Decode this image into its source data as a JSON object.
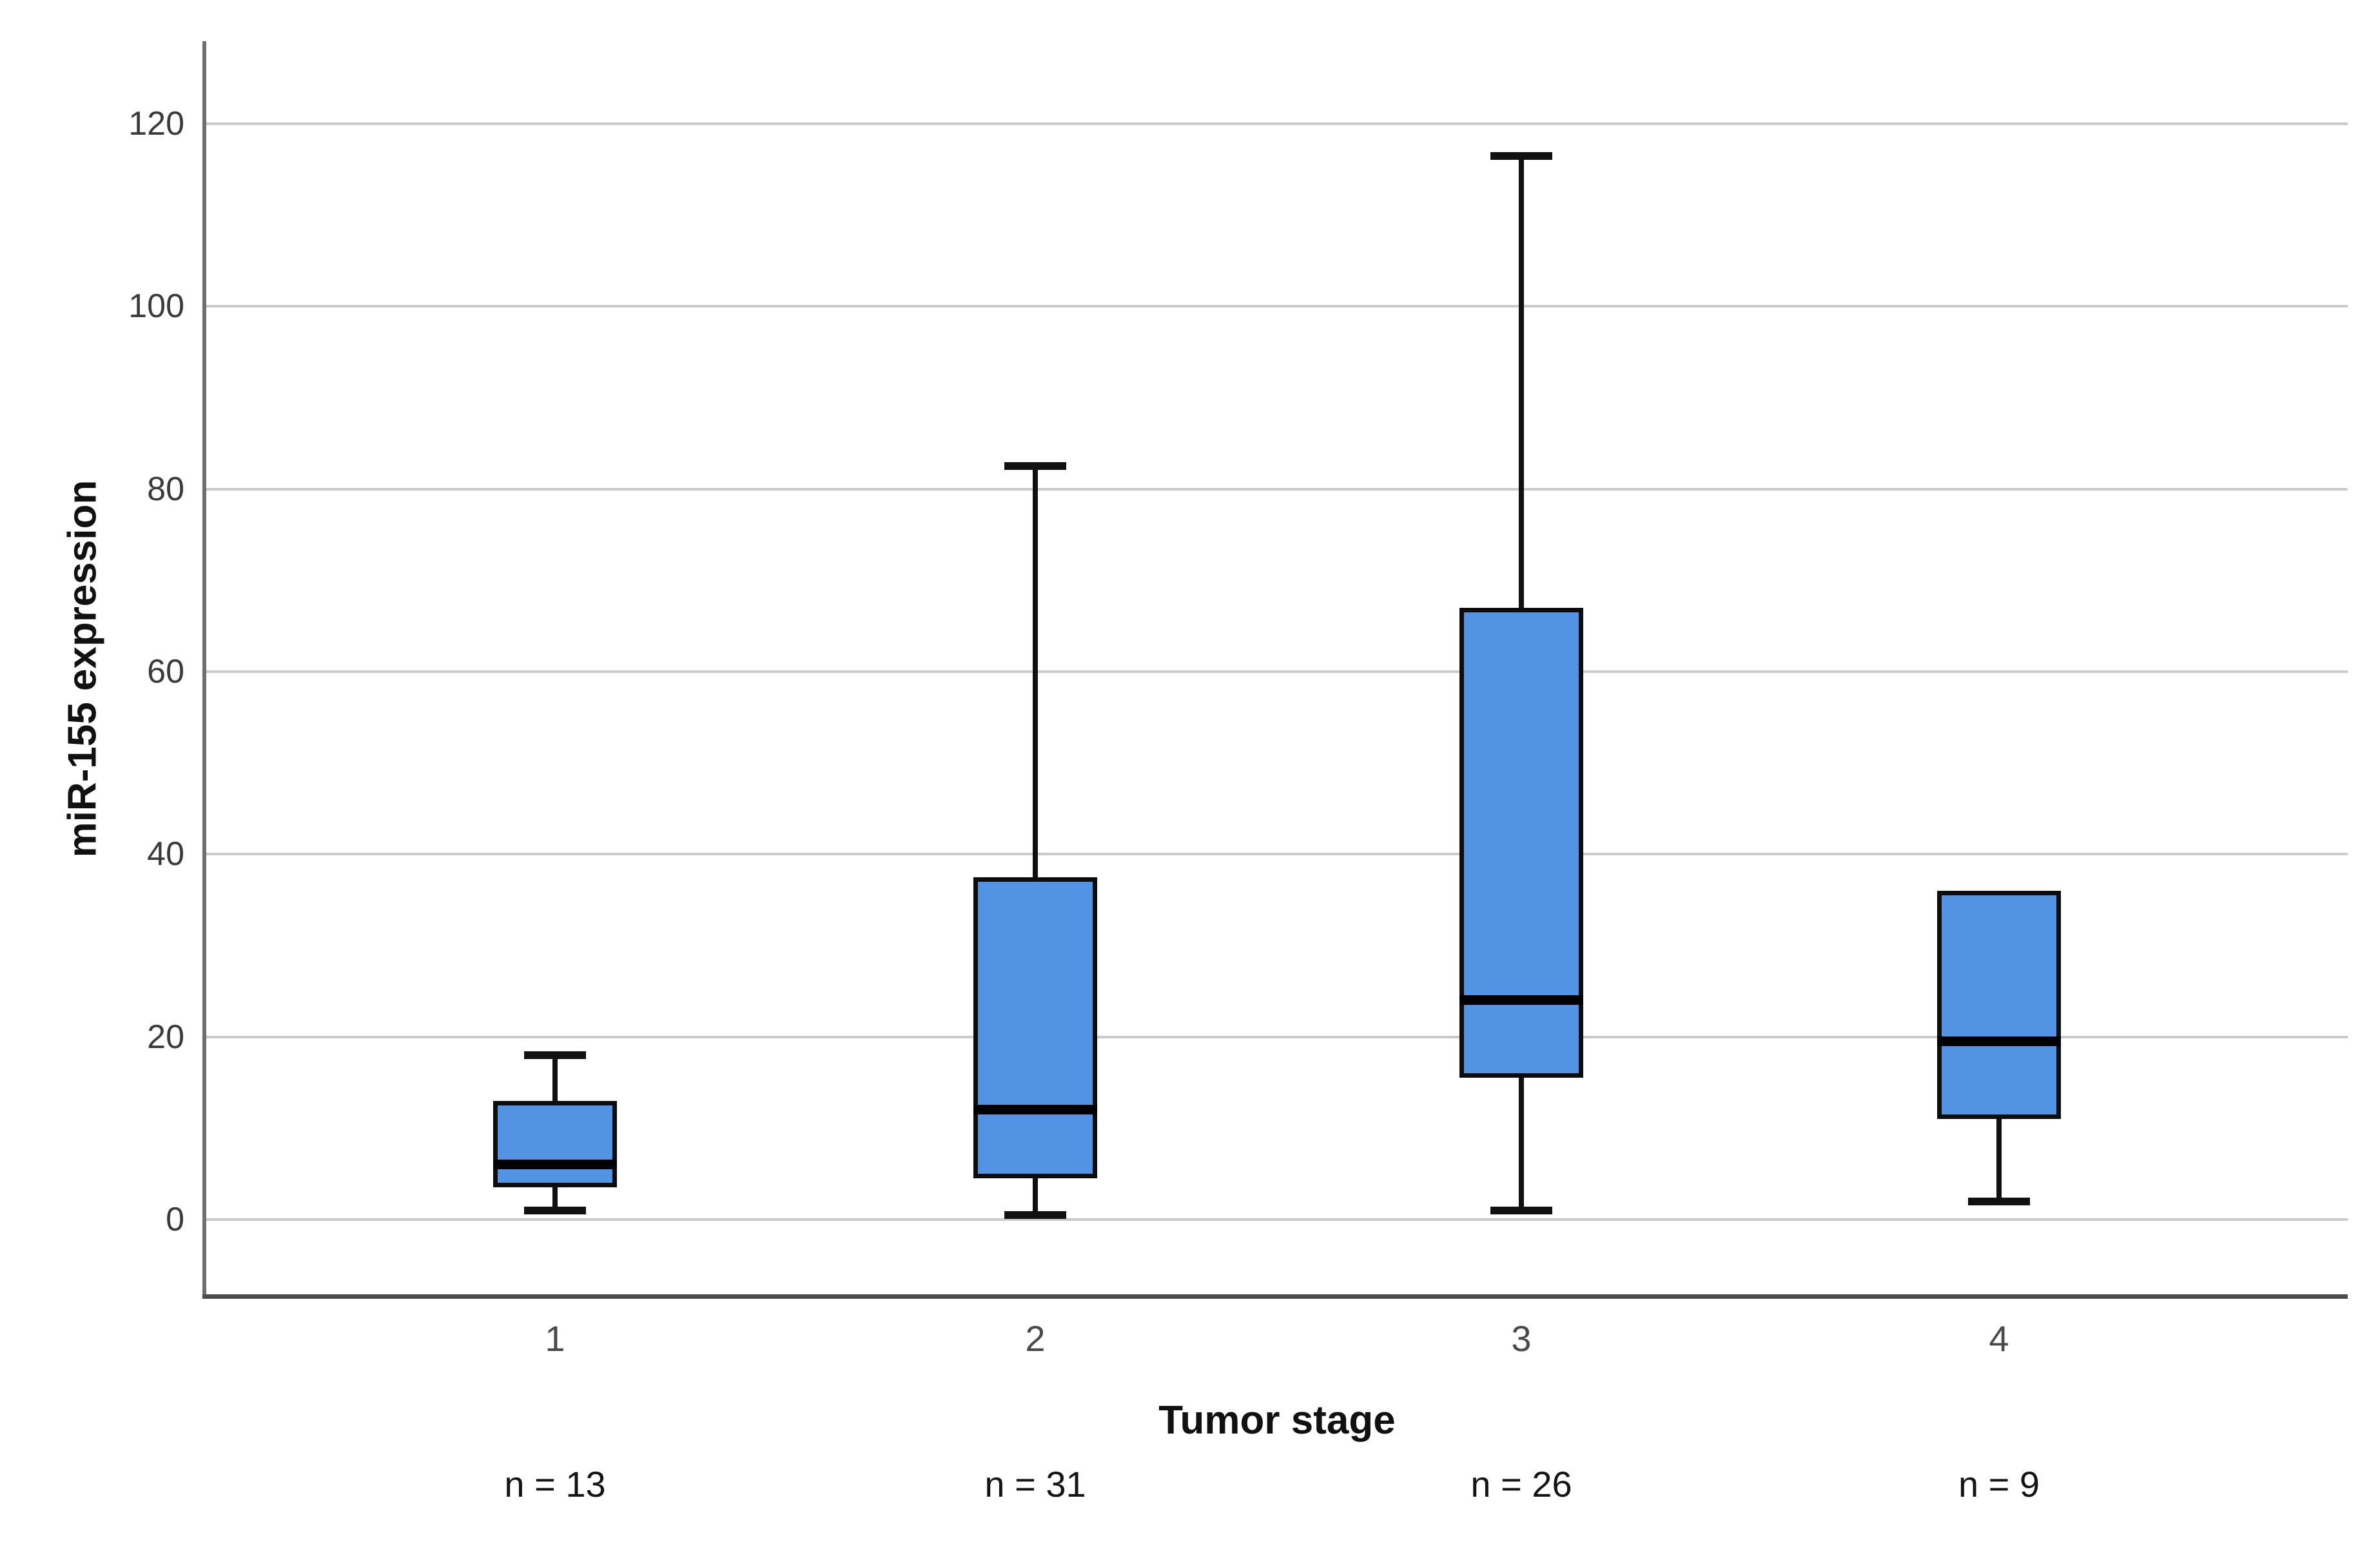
{
  "chart_data": {
    "type": "box",
    "title": "",
    "xlabel": "Tumor stage",
    "ylabel": "miR-155 expression",
    "ylim": [
      0,
      120
    ],
    "grid": "horizontal",
    "legend": "none",
    "yticks": [
      0,
      20,
      40,
      60,
      80,
      100,
      120
    ],
    "ytick_labels": [
      "0",
      "20",
      "40",
      "60",
      "80",
      "100",
      "120"
    ],
    "categories": [
      "1",
      "2",
      "3",
      "4"
    ],
    "sample_size_labels": [
      "n = 13",
      "n = 31",
      "n = 26",
      "n = 9"
    ],
    "boxes": [
      {
        "stage": "1",
        "n": 13,
        "whisker_low": 1,
        "q1": 3.5,
        "median": 6,
        "q3": 13,
        "whisker_high": 18,
        "has_upper_whisker": true
      },
      {
        "stage": "2",
        "n": 31,
        "whisker_low": 0.5,
        "q1": 4.5,
        "median": 12,
        "q3": 37.5,
        "whisker_high": 82.5,
        "has_upper_whisker": true
      },
      {
        "stage": "3",
        "n": 26,
        "whisker_low": 1,
        "q1": 15.5,
        "median": 24,
        "q3": 67,
        "whisker_high": 116.5,
        "has_upper_whisker": true
      },
      {
        "stage": "4",
        "n": 9,
        "whisker_low": 2,
        "q1": 11,
        "median": 19.5,
        "q3": 36,
        "whisker_high": 36,
        "has_upper_whisker": false
      }
    ],
    "colors": {
      "box_fill": "#5393e3",
      "box_border": "#0d0d0d",
      "median_line": "#000000",
      "whisker": "#111111",
      "gridline": "#cacaca",
      "y_axis_line": "#6f6f6f",
      "x_axis_line": "#4c4c4c",
      "background": "#ffffff"
    }
  }
}
